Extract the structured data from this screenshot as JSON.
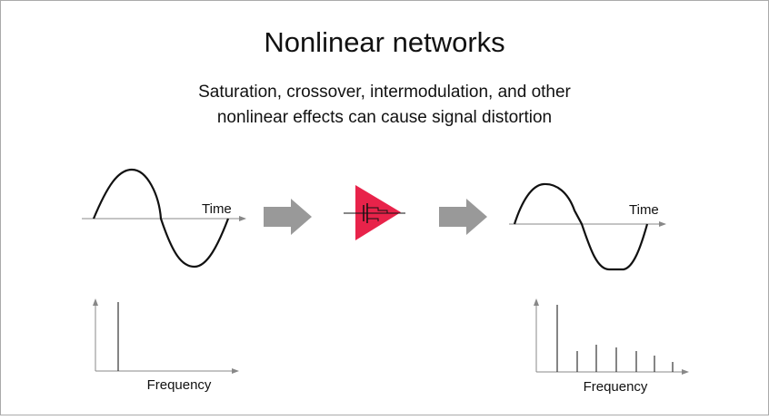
{
  "title": "Nonlinear networks",
  "subtitle": [
    "Saturation, crossover, intermodulation, and other",
    "nonlinear effects can cause signal distortion"
  ],
  "input": {
    "time_label": "Time",
    "frequency_label": "Frequency"
  },
  "output": {
    "time_label": "Time",
    "frequency_label": "Frequency"
  }
}
